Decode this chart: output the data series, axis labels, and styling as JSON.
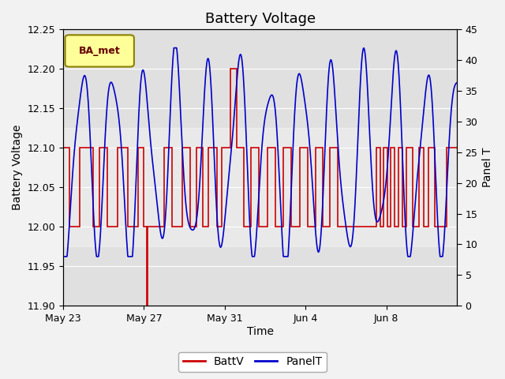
{
  "title": "Battery Voltage",
  "xlabel": "Time",
  "ylabel_left": "Battery Voltage",
  "ylabel_right": "Panel T",
  "ylim_left": [
    11.9,
    12.25
  ],
  "ylim_right": [
    0,
    45
  ],
  "yticks_left": [
    11.9,
    11.95,
    12.0,
    12.05,
    12.1,
    12.15,
    12.2,
    12.25
  ],
  "yticks_right": [
    0,
    5,
    10,
    15,
    20,
    25,
    30,
    35,
    40,
    45
  ],
  "background_color": "#f2f2f2",
  "plot_bg_color": "#e0e0e0",
  "inner_bg_color": "#d8d8d8",
  "legend_label": "BA_met",
  "legend_bg": "#ffff99",
  "legend_border": "#8B8000",
  "battv_color": "#cc0000",
  "panelt_color": "#0000cc",
  "grid_color": "#ffffff",
  "title_fontsize": 13,
  "axis_label_fontsize": 10,
  "tick_fontsize": 9,
  "xlim": [
    0,
    19.5
  ],
  "x_tick_positions": [
    0,
    4,
    8,
    12,
    16
  ],
  "x_tick_labels": [
    "May 23",
    "May 27",
    "May 31",
    "Jun 4",
    "Jun 8"
  ],
  "battv_x": [
    0.0,
    0.3,
    0.3,
    0.8,
    0.8,
    1.5,
    1.5,
    1.8,
    1.8,
    2.2,
    2.2,
    2.7,
    2.7,
    3.2,
    3.2,
    3.7,
    3.7,
    4.0,
    4.0,
    4.15,
    4.15,
    4.18,
    4.18,
    5.0,
    5.0,
    5.4,
    5.4,
    5.9,
    5.9,
    6.3,
    6.3,
    6.6,
    6.6,
    6.9,
    6.9,
    7.2,
    7.2,
    7.6,
    7.6,
    7.85,
    7.85,
    8.3,
    8.3,
    8.6,
    8.6,
    8.95,
    8.95,
    9.3,
    9.3,
    9.7,
    9.7,
    10.1,
    10.1,
    10.5,
    10.5,
    10.9,
    10.9,
    11.3,
    11.3,
    11.7,
    11.7,
    12.1,
    12.1,
    12.5,
    12.5,
    12.85,
    12.85,
    13.2,
    13.2,
    13.6,
    13.6,
    14.0,
    14.0,
    15.5,
    15.5,
    15.7,
    15.7,
    15.85,
    15.85,
    16.05,
    16.05,
    16.2,
    16.2,
    16.4,
    16.4,
    16.6,
    16.6,
    16.8,
    16.8,
    17.0,
    17.0,
    17.3,
    17.3,
    17.6,
    17.6,
    17.85,
    17.85,
    18.1,
    18.1,
    18.4,
    18.4,
    19.0,
    19.0,
    19.5
  ],
  "battv_y": [
    12.1,
    12.1,
    12.0,
    12.0,
    12.1,
    12.1,
    12.0,
    12.0,
    12.1,
    12.1,
    12.0,
    12.0,
    12.1,
    12.1,
    12.0,
    12.0,
    12.1,
    12.1,
    12.0,
    12.0,
    11.9,
    11.9,
    12.0,
    12.0,
    12.1,
    12.1,
    12.0,
    12.0,
    12.1,
    12.1,
    12.0,
    12.0,
    12.1,
    12.1,
    12.0,
    12.0,
    12.1,
    12.1,
    12.0,
    12.0,
    12.1,
    12.1,
    12.2,
    12.2,
    12.1,
    12.1,
    12.0,
    12.0,
    12.1,
    12.1,
    12.0,
    12.0,
    12.1,
    12.1,
    12.0,
    12.0,
    12.1,
    12.1,
    12.0,
    12.0,
    12.1,
    12.1,
    12.0,
    12.0,
    12.1,
    12.1,
    12.0,
    12.0,
    12.1,
    12.1,
    12.0,
    12.0,
    12.0,
    12.0,
    12.1,
    12.1,
    12.0,
    12.0,
    12.1,
    12.1,
    12.0,
    12.0,
    12.1,
    12.1,
    12.0,
    12.0,
    12.1,
    12.1,
    12.0,
    12.0,
    12.1,
    12.1,
    12.0,
    12.0,
    12.1,
    12.1,
    12.0,
    12.0,
    12.1,
    12.1,
    12.0,
    12.0,
    12.1,
    12.1
  ]
}
